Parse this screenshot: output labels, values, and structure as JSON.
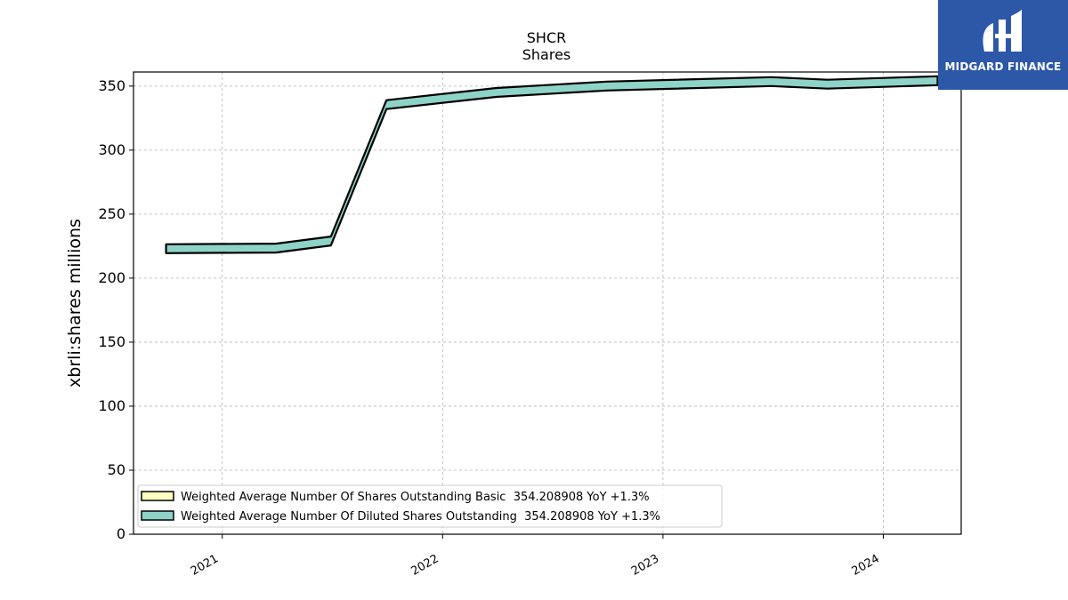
{
  "logo": {
    "brand": "MIDGARD FINANCE",
    "color": "#2d58a8",
    "icon": "midgard-logo-icon"
  },
  "chart_data": {
    "type": "area",
    "title": "SHCR",
    "subtitle": "Shares",
    "xlabel": "",
    "ylabel": "xbrli:shares millions",
    "xlim": [
      "2020-08-07",
      "2024-05-09"
    ],
    "ylim": [
      0,
      361
    ],
    "yticks": [
      0,
      50,
      100,
      150,
      200,
      250,
      300,
      350
    ],
    "xticks": [
      {
        "label": "2021",
        "date": "2021-01-01"
      },
      {
        "label": "2022",
        "date": "2022-01-01"
      },
      {
        "label": "2023",
        "date": "2023-01-01"
      },
      {
        "label": "2024",
        "date": "2024-01-01"
      }
    ],
    "grid": true,
    "legend_position": "lower-left",
    "dates": [
      "2020-09-30",
      "2021-03-31",
      "2021-06-30",
      "2021-09-30",
      "2022-03-31",
      "2022-09-30",
      "2023-06-30",
      "2023-09-30",
      "2024-03-31"
    ],
    "series": [
      {
        "name": "Weighted Average Number Of Shares Outstanding Basic",
        "legend_label": "Weighted Average Number Of Shares Outstanding Basic  354.208908 YoY +1.3%",
        "color": "#ffffbf",
        "values": [
          223.0,
          223.5,
          229.0,
          335.5,
          345.0,
          350.0,
          353.5,
          351.5,
          354.2
        ]
      },
      {
        "name": "Weighted Average Number Of Diluted Shares Outstanding",
        "legend_label": "Weighted Average Number Of Diluted Shares Outstanding  354.208908 YoY +1.3%",
        "color": "#8dd3c7",
        "values": [
          223.0,
          223.5,
          229.0,
          335.5,
          345.0,
          350.0,
          353.5,
          351.5,
          354.2
        ]
      }
    ]
  }
}
